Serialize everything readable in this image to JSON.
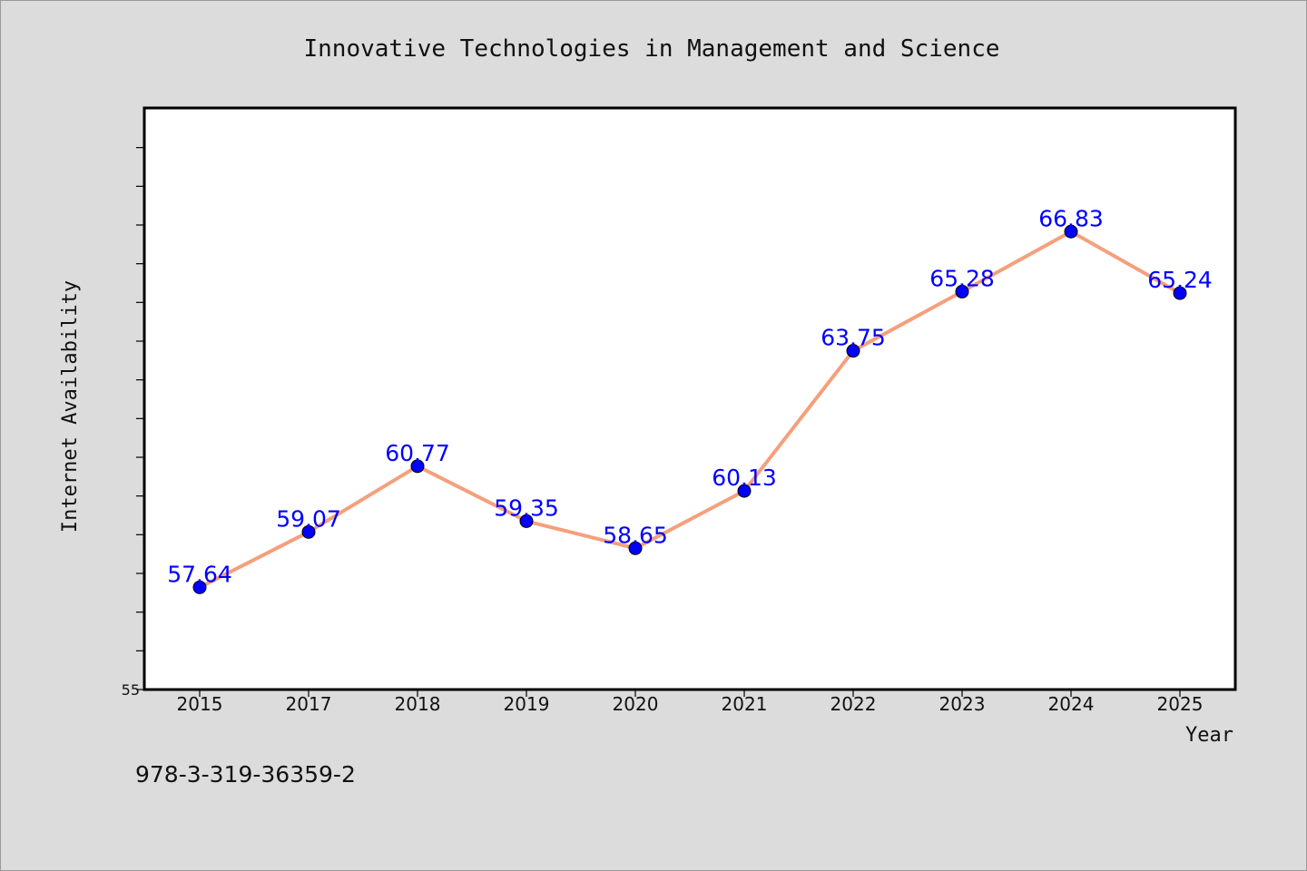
{
  "footer": {
    "isbn": "978-3-319-36359-2"
  },
  "colors": {
    "line": "#f4a07c",
    "marker": "#0000ff",
    "label": "#0000ff",
    "background": "#dcdcdc",
    "plot_background": "#ffffff"
  },
  "chart_data": {
    "type": "line",
    "title": "Innovative Technologies in Management and Science",
    "xlabel": "Year",
    "ylabel": "Internet Availability",
    "categories": [
      "2015",
      "2017",
      "2018",
      "2019",
      "2020",
      "2021",
      "2022",
      "2023",
      "2024",
      "2025"
    ],
    "values": [
      57.64,
      59.07,
      60.77,
      59.35,
      58.65,
      60.13,
      63.75,
      65.28,
      66.83,
      65.24
    ],
    "data_labels": [
      "57.64",
      "59.07",
      "60.77",
      "59.35",
      "58.65",
      "60.13",
      "63.75",
      "65.28",
      "66.83",
      "65.24"
    ],
    "ylim": [
      55,
      70
    ],
    "yticks_labeled": [
      "55"
    ],
    "ytick_step": 1,
    "grid": false,
    "legend": "none"
  }
}
